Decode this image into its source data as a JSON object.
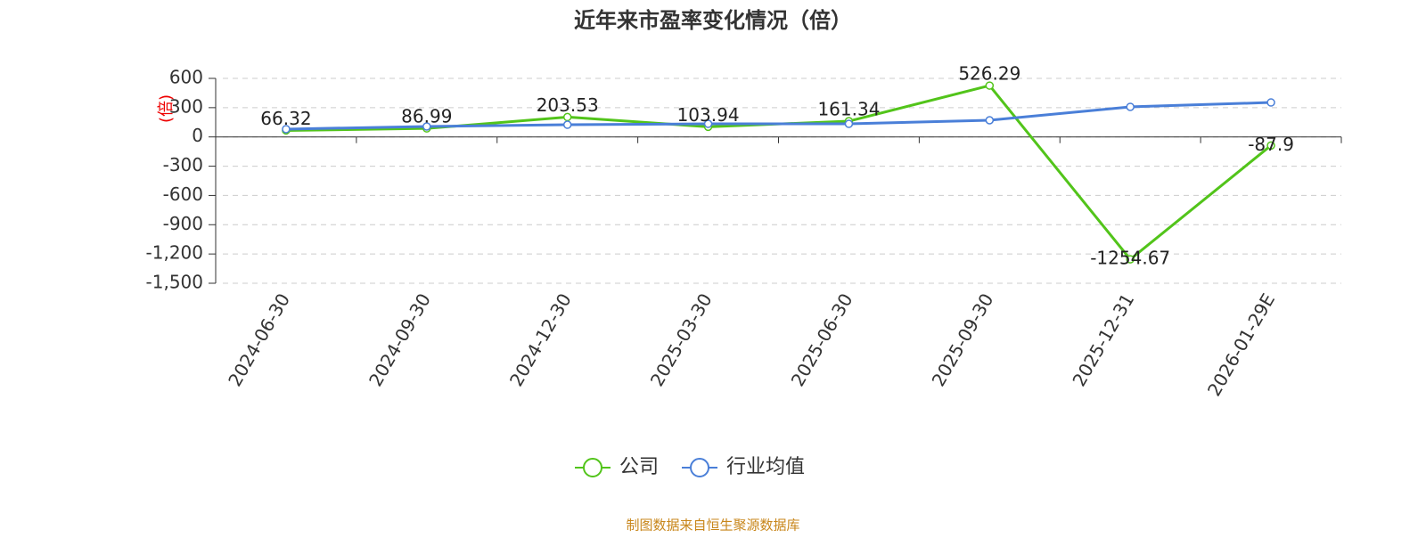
{
  "chart_data": {
    "type": "line",
    "title": "近年来市盈率变化情况（倍）",
    "y_label": "(倍)",
    "categories": [
      "2024-06-30",
      "2024-09-30",
      "2024-12-30",
      "2025-03-30",
      "2025-06-30",
      "2025-09-30",
      "2025-12-31",
      "2026-01-29E"
    ],
    "series": [
      {
        "name": "公司",
        "color": "#52c41a",
        "values": [
          66.32,
          86.99,
          203.53,
          103.94,
          161.34,
          526.29,
          -1254.67,
          -87.9
        ],
        "show_labels": true
      },
      {
        "name": "行业均值",
        "color": "#4a7fd8",
        "values": [
          80,
          107,
          125,
          134,
          134,
          171,
          308,
          353
        ],
        "show_labels": false
      }
    ],
    "ylim": [
      -1500,
      600
    ],
    "yticks": [
      600,
      300,
      0,
      -300,
      -600,
      -900,
      {
        "value": -1200,
        "label": "-1,200"
      },
      {
        "value": -1500,
        "label": "-1,500"
      }
    ],
    "grid": true,
    "source": "制图数据来自恒生聚源数据库"
  }
}
